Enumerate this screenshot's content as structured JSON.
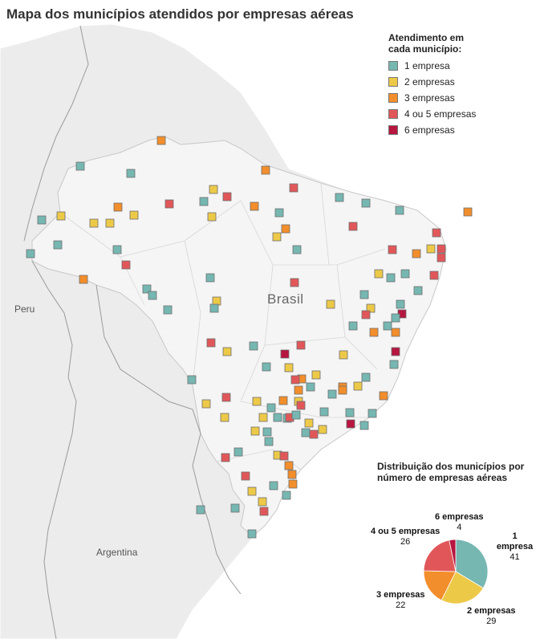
{
  "title": "Mapa dos municípios atendidos por empresas aéreas",
  "legend": {
    "title": "Atendimento em cada município:",
    "items": [
      {
        "label": "1 empresa",
        "color": "#76b7b2"
      },
      {
        "label": "2 empresas",
        "color": "#edc948"
      },
      {
        "label": "3 empresas",
        "color": "#f28e2b"
      },
      {
        "label": "4 ou 5 empresas",
        "color": "#e15759"
      },
      {
        "label": "6 empresas",
        "color": "#b6163f"
      }
    ]
  },
  "labels": {
    "brasil": "Brasil",
    "peru": "Peru",
    "argentina": "Argentina"
  },
  "pie": {
    "title": "Distribuição dos municípios por número de empresas aéreas",
    "slices": [
      {
        "label": "1 empresa",
        "value": 41,
        "color": "#76b7b2"
      },
      {
        "label": "2 empresas",
        "value": 29,
        "color": "#edc948"
      },
      {
        "label": "3 empresas",
        "value": 22,
        "color": "#f28e2b"
      },
      {
        "label": "4 ou 5 empresas",
        "value": 26,
        "color": "#e15759"
      },
      {
        "label": "6 empresas",
        "value": 4,
        "color": "#b6163f"
      }
    ]
  }
}
